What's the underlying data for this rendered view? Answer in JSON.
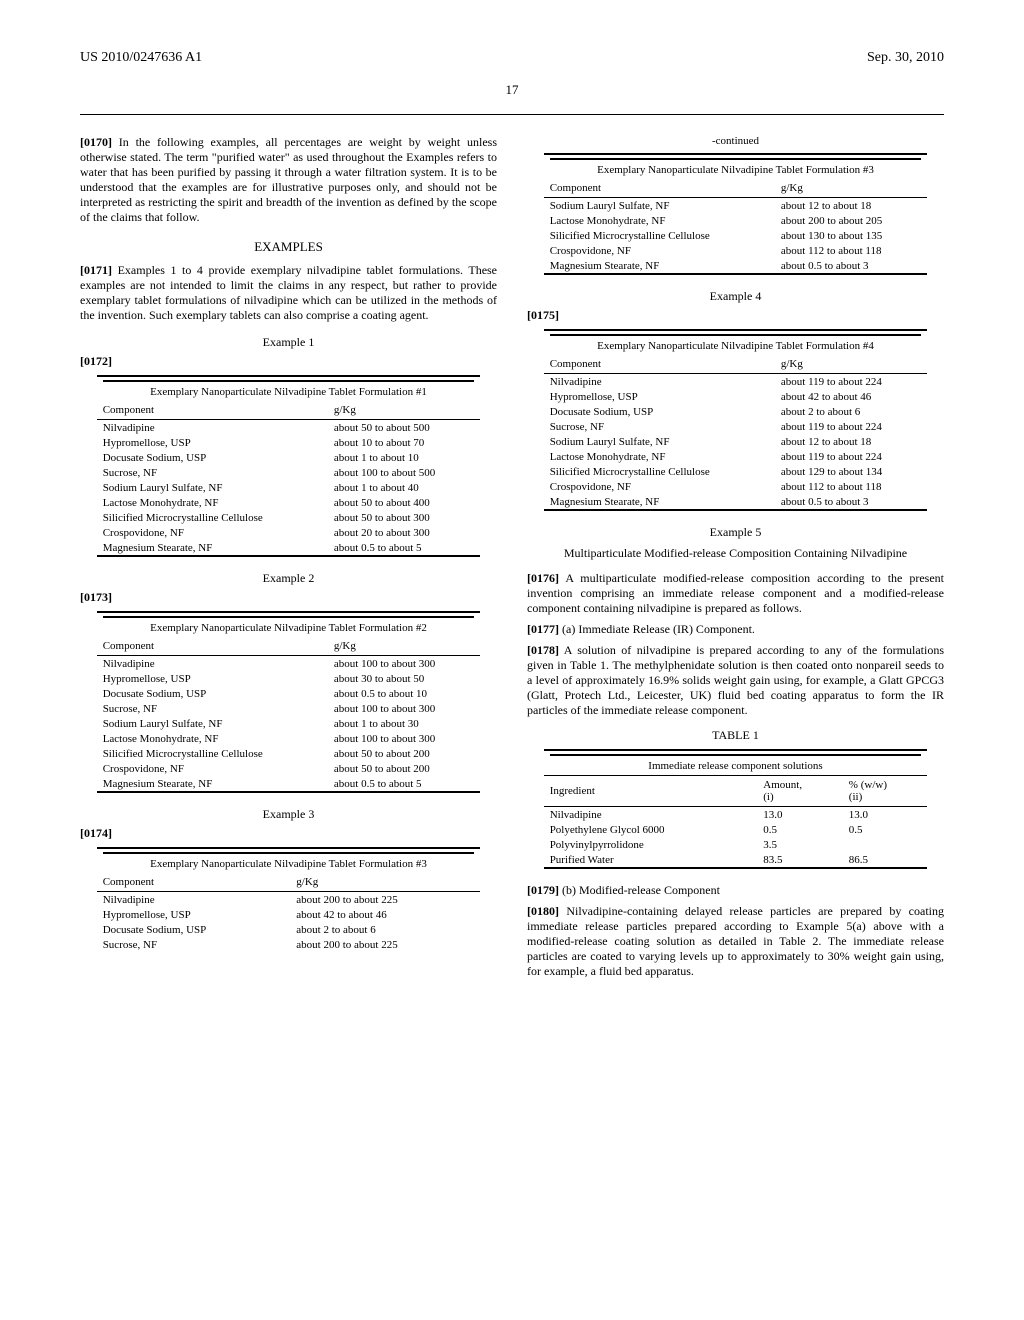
{
  "header": {
    "publication_number": "US 2010/0247636 A1",
    "publication_date": "Sep. 30, 2010",
    "page_number": "17"
  },
  "left": {
    "p0170": {
      "num": "[0170]",
      "text": "In the following examples, all percentages are weight by weight unless otherwise stated. The term \"purified water\" as used throughout the Examples refers to water that has been purified by passing it through a water filtration system. It is to be understood that the examples are for illustrative purposes only, and should not be interpreted as restricting the spirit and breadth of the invention as defined by the scope of the claims that follow."
    },
    "examples_heading": "EXAMPLES",
    "p0171": {
      "num": "[0171]",
      "text": "Examples 1 to 4 provide exemplary nilvadipine tablet formulations. These examples are not intended to limit the claims in any respect, but rather to provide exemplary tablet formulations of nilvadipine which can be utilized in the methods of the invention. Such exemplary tablets can also comprise a coating agent."
    },
    "ex1": {
      "title": "Example 1"
    },
    "p0172": {
      "num": "[0172]"
    },
    "table1": {
      "caption": "Exemplary Nanoparticulate Nilvadipine Tablet Formulation #1",
      "col1": "Component",
      "col2": "g/Kg",
      "rows": [
        [
          "Nilvadipine",
          "about 50 to about 500"
        ],
        [
          "Hypromellose, USP",
          "about 10 to about 70"
        ],
        [
          "Docusate Sodium, USP",
          "about 1 to about 10"
        ],
        [
          "Sucrose, NF",
          "about 100 to about 500"
        ],
        [
          "Sodium Lauryl Sulfate, NF",
          "about 1 to about 40"
        ],
        [
          "Lactose Monohydrate, NF",
          "about 50 to about 400"
        ],
        [
          "Silicified Microcrystalline Cellulose",
          "about 50 to about 300"
        ],
        [
          "Crospovidone, NF",
          "about 20 to about 300"
        ],
        [
          "Magnesium Stearate, NF",
          "about 0.5 to about 5"
        ]
      ]
    },
    "ex2": {
      "title": "Example 2"
    },
    "p0173": {
      "num": "[0173]"
    },
    "table2": {
      "caption": "Exemplary Nanoparticulate Nilvadipine Tablet Formulation #2",
      "col1": "Component",
      "col2": "g/Kg",
      "rows": [
        [
          "Nilvadipine",
          "about 100 to about 300"
        ],
        [
          "Hypromellose, USP",
          "about 30 to about 50"
        ],
        [
          "Docusate Sodium, USP",
          "about 0.5 to about 10"
        ],
        [
          "Sucrose, NF",
          "about 100 to about 300"
        ],
        [
          "Sodium Lauryl Sulfate, NF",
          "about 1 to about 30"
        ],
        [
          "Lactose Monohydrate, NF",
          "about 100 to about 300"
        ],
        [
          "Silicified Microcrystalline Cellulose",
          "about 50 to about 200"
        ],
        [
          "Crospovidone, NF",
          "about 50 to about 200"
        ],
        [
          "Magnesium Stearate, NF",
          "about 0.5 to about 5"
        ]
      ]
    },
    "ex3": {
      "title": "Example 3"
    },
    "p0174": {
      "num": "[0174]"
    },
    "table3a": {
      "caption": "Exemplary Nanoparticulate Nilvadipine Tablet Formulation #3",
      "col1": "Component",
      "col2": "g/Kg",
      "rows": [
        [
          "Nilvadipine",
          "about 200 to about 225"
        ],
        [
          "Hypromellose, USP",
          "about 42 to about 46"
        ],
        [
          "Docusate Sodium, USP",
          "about 2 to about 6"
        ],
        [
          "Sucrose, NF",
          "about 200 to about 225"
        ]
      ]
    }
  },
  "right": {
    "continued": "-continued",
    "table3b": {
      "caption": "Exemplary Nanoparticulate Nilvadipine Tablet Formulation #3",
      "col1": "Component",
      "col2": "g/Kg",
      "rows": [
        [
          "Sodium Lauryl Sulfate, NF",
          "about 12 to about 18"
        ],
        [
          "Lactose Monohydrate, NF",
          "about 200 to about 205"
        ],
        [
          "Silicified Microcrystalline Cellulose",
          "about 130 to about 135"
        ],
        [
          "Crospovidone, NF",
          "about 112 to about 118"
        ],
        [
          "Magnesium Stearate, NF",
          "about 0.5 to about 3"
        ]
      ]
    },
    "ex4": {
      "title": "Example 4"
    },
    "p0175": {
      "num": "[0175]"
    },
    "table4": {
      "caption": "Exemplary Nanoparticulate Nilvadipine Tablet Formulation #4",
      "col1": "Component",
      "col2": "g/Kg",
      "rows": [
        [
          "Nilvadipine",
          "about 119 to about 224"
        ],
        [
          "Hypromellose, USP",
          "about 42 to about 46"
        ],
        [
          "Docusate Sodium, USP",
          "about 2 to about 6"
        ],
        [
          "Sucrose, NF",
          "about 119 to about 224"
        ],
        [
          "Sodium Lauryl Sulfate, NF",
          "about 12 to about 18"
        ],
        [
          "Lactose Monohydrate, NF",
          "about 119 to about 224"
        ],
        [
          "Silicified Microcrystalline Cellulose",
          "about 129 to about 134"
        ],
        [
          "Crospovidone, NF",
          "about 112 to about 118"
        ],
        [
          "Magnesium Stearate, NF",
          "about 0.5 to about 3"
        ]
      ]
    },
    "ex5": {
      "title": "Example 5",
      "subtitle": "Multiparticulate Modified-release Composition Containing Nilvadipine"
    },
    "p0176": {
      "num": "[0176]",
      "text": "A multiparticulate modified-release composition according to the present invention comprising an immediate release component and a modified-release component containing nilvadipine is prepared as follows."
    },
    "p0177": {
      "num": "[0177]",
      "text": "(a) Immediate Release (IR) Component."
    },
    "p0178": {
      "num": "[0178]",
      "text": "A solution of nilvadipine is prepared according to any of the formulations given in Table 1. The methylphenidate solution is then coated onto nonpareil seeds to a level of approximately 16.9% solids weight gain using, for example, a Glatt GPCG3 (Glatt, Protech Ltd., Leicester, UK) fluid bed coating apparatus to form the IR particles of the immediate release component."
    },
    "table_label": "TABLE 1",
    "table5": {
      "caption": "Immediate release component solutions",
      "col1": "Ingredient",
      "col2": "Amount,\n(i)",
      "col3": "% (w/w)\n(ii)",
      "rows": [
        [
          "Nilvadipine",
          "13.0",
          "13.0"
        ],
        [
          "Polyethylene Glycol 6000",
          "0.5",
          "0.5"
        ],
        [
          "Polyvinylpyrrolidone",
          "3.5",
          ""
        ],
        [
          "Purified Water",
          "83.5",
          "86.5"
        ]
      ]
    },
    "p0179": {
      "num": "[0179]",
      "text": "(b) Modified-release Component"
    },
    "p0180": {
      "num": "[0180]",
      "text": "Nilvadipine-containing delayed release particles are prepared by coating immediate release particles prepared according to Example 5(a) above with a modified-release coating solution as detailed in Table 2. The immediate release particles are coated to varying levels up to approximately to 30% weight gain using, for example, a fluid bed apparatus."
    }
  }
}
